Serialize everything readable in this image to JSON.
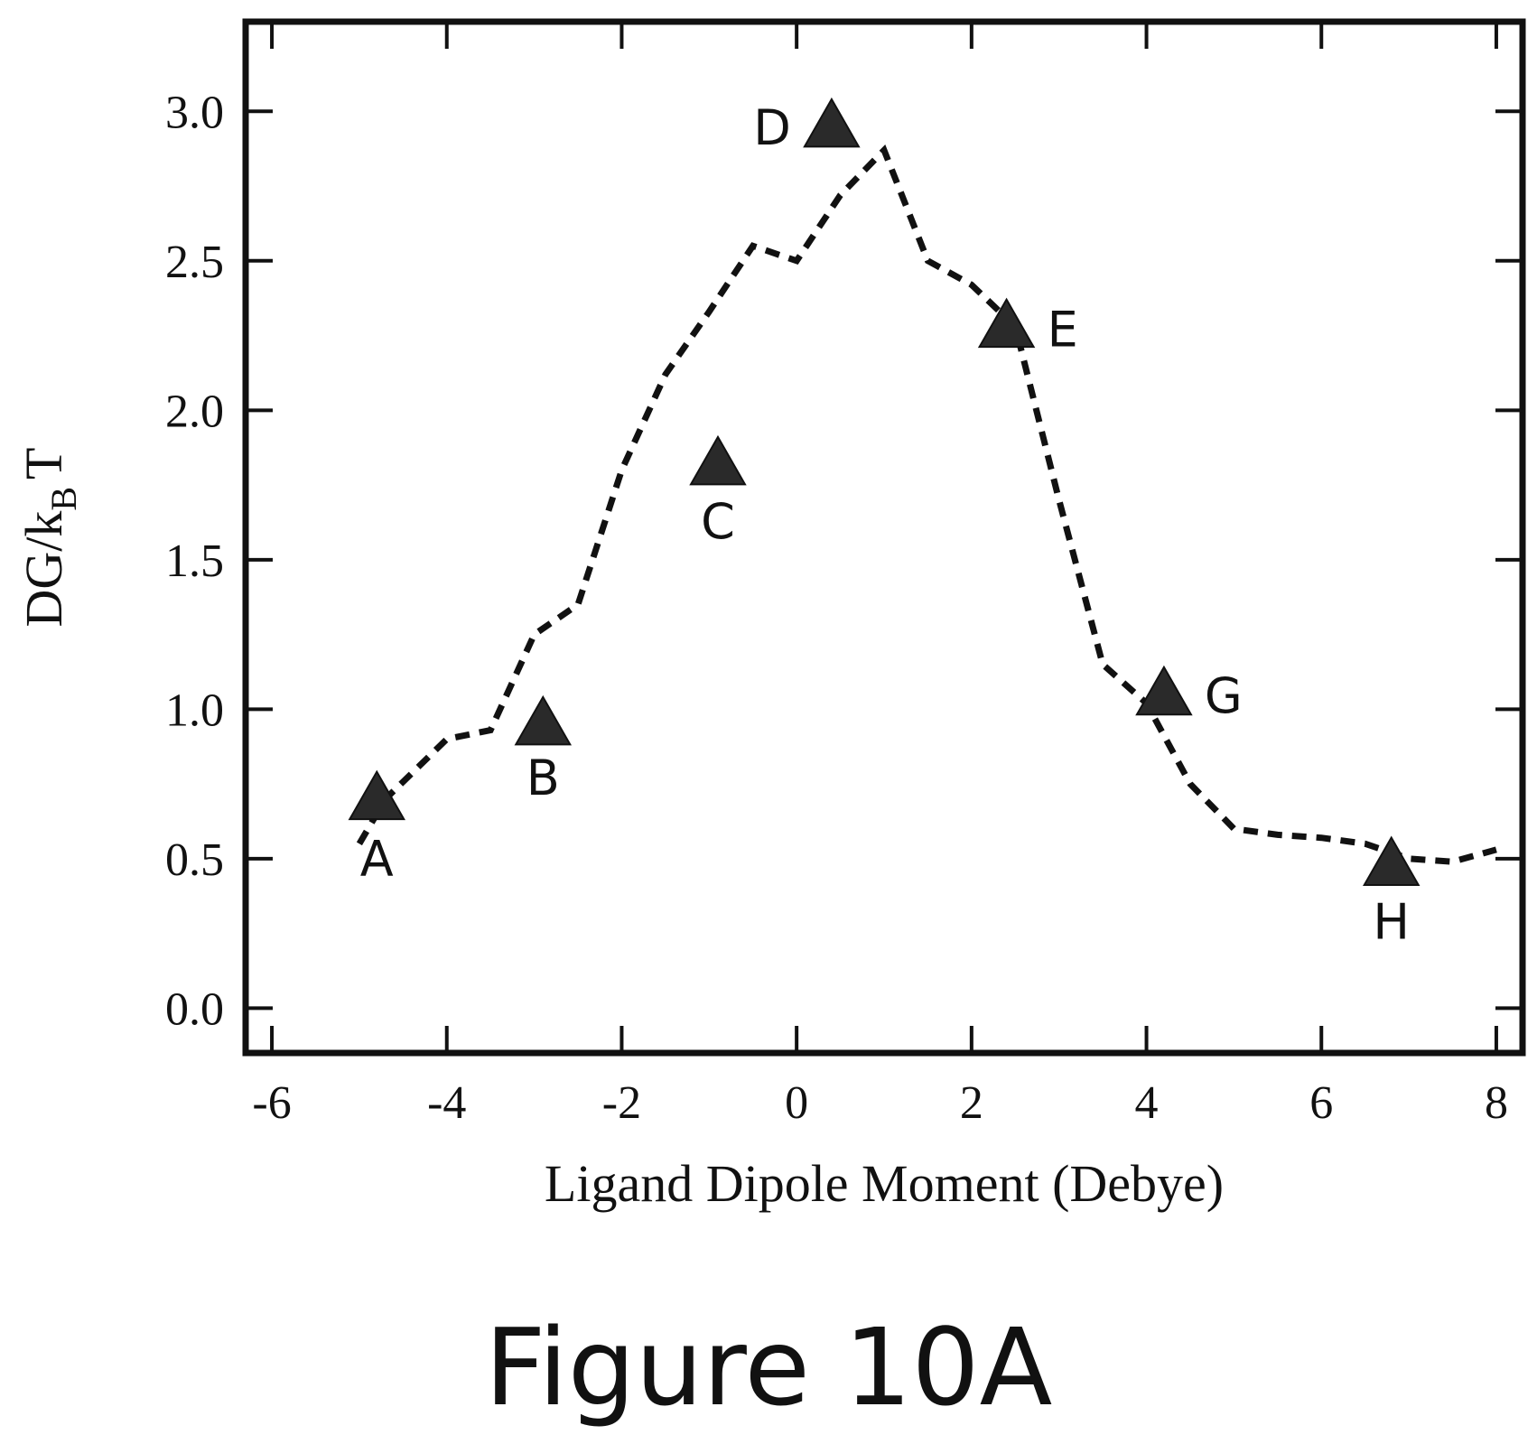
{
  "chart_data": {
    "type": "scatter",
    "xlabel": "Ligand Dipole Moment (Debye)",
    "ylabel_main": "DG/k",
    "ylabel_sub": "B",
    "ylabel_tail": "T",
    "xlim": [
      -6.3,
      8.3
    ],
    "ylim": [
      -0.15,
      3.3
    ],
    "x_ticks": [
      "-6",
      "-4",
      "-2",
      "0",
      "2",
      "4",
      "6",
      "8"
    ],
    "y_ticks": [
      "0.0",
      "0.5",
      "1.0",
      "1.5",
      "2.0",
      "2.5",
      "3.0"
    ],
    "x_tick_values": [
      -6,
      -4,
      -2,
      0,
      2,
      4,
      6,
      8
    ],
    "y_tick_values": [
      0.0,
      0.5,
      1.0,
      1.5,
      2.0,
      2.5,
      3.0
    ],
    "points": [
      {
        "label": "A",
        "x": -4.8,
        "y": 0.7
      },
      {
        "label": "B",
        "x": -2.9,
        "y": 0.95
      },
      {
        "label": "C",
        "x": -0.9,
        "y": 1.82
      },
      {
        "label": "D",
        "x": 0.4,
        "y": 2.95
      },
      {
        "label": "E",
        "x": 2.4,
        "y": 2.28
      },
      {
        "label": "G",
        "x": 4.2,
        "y": 1.05
      },
      {
        "label": "H",
        "x": 6.8,
        "y": 0.48
      }
    ],
    "curve": {
      "style": "dashed",
      "x": [
        -5.0,
        -4.7,
        -4.0,
        -3.5,
        -3.0,
        -2.5,
        -2.0,
        -1.5,
        -1.0,
        -0.5,
        0.0,
        0.5,
        1.0,
        1.5,
        2.0,
        2.5,
        3.0,
        3.5,
        4.0,
        4.5,
        5.0,
        5.5,
        6.0,
        6.5,
        7.0,
        7.5,
        8.0
      ],
      "y": [
        0.55,
        0.7,
        0.9,
        0.93,
        1.25,
        1.35,
        1.8,
        2.12,
        2.33,
        2.55,
        2.5,
        2.72,
        2.87,
        2.5,
        2.42,
        2.28,
        1.7,
        1.15,
        1.02,
        0.75,
        0.6,
        0.58,
        0.57,
        0.55,
        0.5,
        0.49,
        0.53
      ]
    }
  },
  "caption": "Figure 10A"
}
